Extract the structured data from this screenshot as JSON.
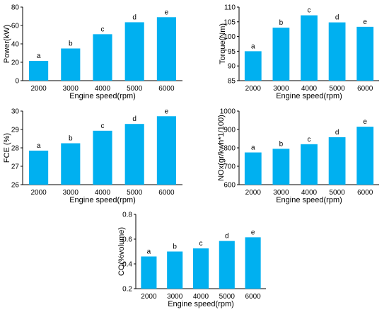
{
  "style": {
    "bar_color": "#00B0F0",
    "axis_color": "#000000",
    "text_color": "#000000"
  },
  "chart_data": [
    {
      "type": "bar",
      "categories": [
        "2000",
        "3000",
        "4000",
        "5000",
        "6000"
      ],
      "values": [
        21.5,
        35,
        50.5,
        63.5,
        69
      ],
      "letters": [
        "a",
        "b",
        "c",
        "d",
        "e"
      ],
      "xlabel": "Engine speed(rpm)",
      "ylabel": "Power(kW)",
      "ylim": [
        0,
        80
      ],
      "yticks": [
        "0",
        "20",
        "40",
        "60",
        "80"
      ],
      "grid": false
    },
    {
      "type": "bar",
      "categories": [
        "2000",
        "3000",
        "4000",
        "5000",
        "6000"
      ],
      "values": [
        95,
        103,
        107.2,
        104.8,
        103.3
      ],
      "letters": [
        "a",
        "b",
        "c",
        "d",
        "e"
      ],
      "xlabel": "Engine speed(rpm)",
      "ylabel": "Torque(Nm)",
      "ylim": [
        85,
        110
      ],
      "yticks": [
        "85",
        "90",
        "95",
        "100",
        "105",
        "110"
      ],
      "grid": false
    },
    {
      "type": "bar",
      "categories": [
        "2000",
        "3000",
        "4000",
        "5000",
        "6000"
      ],
      "values": [
        27.85,
        28.25,
        28.93,
        29.3,
        29.72
      ],
      "letters": [
        "a",
        "b",
        "c",
        "d",
        "e"
      ],
      "xlabel": "Engine speed(rpm)",
      "ylabel": "FCE (%)",
      "ylim": [
        26,
        30
      ],
      "yticks": [
        "26",
        "27",
        "28",
        "29",
        "30"
      ],
      "grid": false
    },
    {
      "type": "bar",
      "categories": [
        "2000",
        "3000",
        "4000",
        "5000",
        "6000"
      ],
      "values": [
        775,
        795,
        820,
        858,
        915
      ],
      "letters": [
        "a",
        "b",
        "c",
        "d",
        "e"
      ],
      "xlabel": "Engine speed(rpm)",
      "ylabel": "NOx(gr/kwh*1/100)",
      "ylim": [
        600,
        1000
      ],
      "yticks": [
        "600",
        "700",
        "800",
        "900",
        "1000"
      ],
      "grid": false
    },
    {
      "type": "bar",
      "categories": [
        "2000",
        "3000",
        "4000",
        "5000",
        "6000"
      ],
      "values": [
        0.46,
        0.5,
        0.525,
        0.585,
        0.615
      ],
      "letters": [
        "a",
        "b",
        "c",
        "d",
        "e"
      ],
      "xlabel": "Engine speed(rpm)",
      "ylabel": "CO(%volume)",
      "ylim": [
        0.2,
        0.8
      ],
      "yticks": [
        "0.2",
        "0.4",
        "0.6",
        "0.8"
      ],
      "grid": false
    }
  ]
}
